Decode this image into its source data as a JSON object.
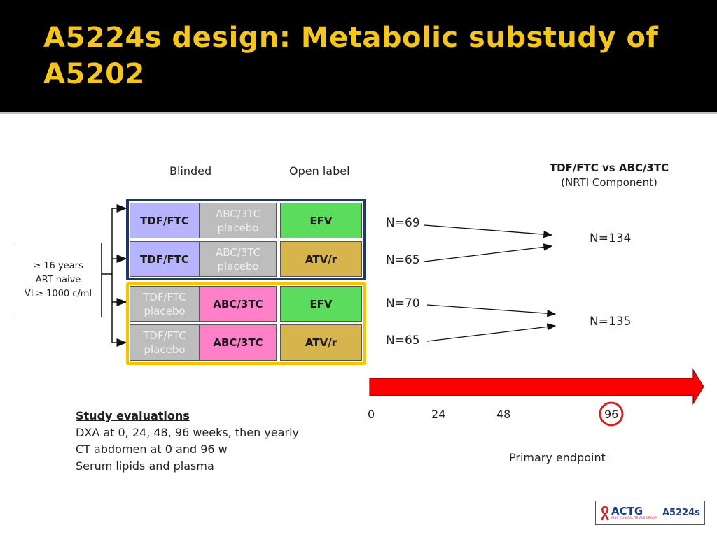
{
  "title": "A5224s design: Metabolic substudy of A5202",
  "headers": {
    "blinded": "Blinded",
    "open_label": "Open label"
  },
  "comparison": {
    "title": "TDF/FTC vs ABC/3TC",
    "subtitle": "(NRTI Component)"
  },
  "population": {
    "lines": [
      "≥ 16 years",
      "ART naive",
      "VL≥  1000 c/ml"
    ]
  },
  "arms": [
    {
      "nrti": "TDF/FTC",
      "placebo": "ABC/3TC placebo",
      "third": "EFV",
      "n": "N=69"
    },
    {
      "nrti": "TDF/FTC",
      "placebo": "ABC/3TC placebo",
      "third": "ATV/r",
      "n": "N=65"
    },
    {
      "placebo": "TDF/FTC placebo",
      "nrti": "ABC/3TC",
      "third": "EFV",
      "n": "N=70"
    },
    {
      "placebo": "TDF/FTC placebo",
      "nrti": "ABC/3TC",
      "third": "ATV/r",
      "n": "N=65"
    }
  ],
  "totals": [
    "N=134",
    "N=135"
  ],
  "timeline": {
    "weeks": [
      "0",
      "24",
      "48",
      "96"
    ],
    "highlight": "96",
    "endpoint_label": "Primary endpoint"
  },
  "evaluations": {
    "heading": "Study evaluations",
    "items": [
      "DXA at 0, 24, 48, 96 weeks, then yearly",
      "CT abdomen at 0 and 96 w",
      "Serum lipids and plasma"
    ]
  },
  "logo": {
    "org": "ACTG",
    "study": "A5224s",
    "subtext": "AIDS CLINICAL TRIALS GROUP"
  },
  "colors": {
    "title": "#f5c518",
    "blinded_box": "#1f3864",
    "open_box": "#ffc000",
    "arrow": "#ff0000",
    "tdf": "#b6b4ff",
    "abc": "#ff7fc8",
    "efv": "#5cdc5c",
    "atv": "#d8b44c"
  }
}
